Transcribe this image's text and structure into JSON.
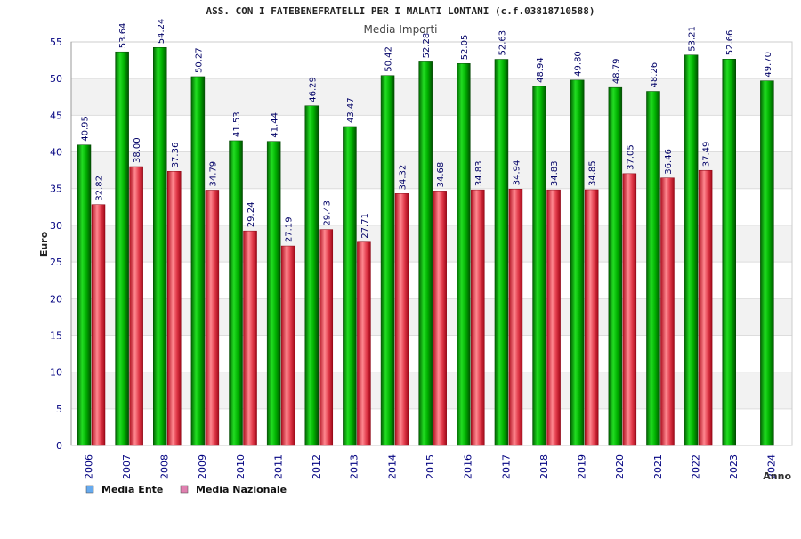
{
  "chart_data": {
    "type": "bar",
    "title": "ASS. CON I FATEBENEFRATELLI PER I MALATI LONTANI (c.f.03818710588)",
    "subtitle": "Media Importi",
    "xlabel": "Anno",
    "ylabel": "Euro",
    "ylim": [
      0,
      55
    ],
    "yticks": [
      0,
      5,
      10,
      15,
      20,
      25,
      30,
      35,
      40,
      45,
      50,
      55
    ],
    "grid": true,
    "legend_position": "bottom-left",
    "categories": [
      "2006",
      "2007",
      "2008",
      "2009",
      "2010",
      "2011",
      "2012",
      "2013",
      "2014",
      "2015",
      "2016",
      "2017",
      "2018",
      "2019",
      "2020",
      "2021",
      "2022",
      "2023",
      "2024"
    ],
    "series": [
      {
        "name": "Media Ente",
        "color": "#00b000",
        "legend_color": "#66aaee",
        "values": [
          40.95,
          53.64,
          54.24,
          50.27,
          41.53,
          41.44,
          46.29,
          43.47,
          50.42,
          52.28,
          52.05,
          52.63,
          48.94,
          49.8,
          48.79,
          48.26,
          53.21,
          52.66,
          49.7
        ],
        "labels": [
          "40.95",
          "53.64",
          "54.24",
          "50.27",
          "41.53",
          "41.44",
          "46.29",
          "43.47",
          "50.42",
          "52.28",
          "52.05",
          "52.63",
          "48.94",
          "49.80",
          "48.79",
          "48.26",
          "53.21",
          "52.66",
          "49.70"
        ]
      },
      {
        "name": "Media Nazionale",
        "color": "#e03040",
        "legend_color": "#e080b0",
        "values": [
          32.82,
          38.0,
          37.36,
          34.79,
          29.24,
          27.19,
          29.43,
          27.71,
          34.32,
          34.68,
          34.83,
          34.94,
          34.83,
          34.85,
          37.05,
          36.46,
          37.49,
          null,
          null
        ],
        "labels": [
          "32.82",
          "38.00",
          "37.36",
          "34.79",
          "29.24",
          "27.19",
          "29.43",
          "27.71",
          "34.32",
          "34.68",
          "34.83",
          "34.94",
          "34.83",
          "34.85",
          "37.05",
          "36.46",
          "37.49",
          null,
          null
        ]
      }
    ]
  }
}
